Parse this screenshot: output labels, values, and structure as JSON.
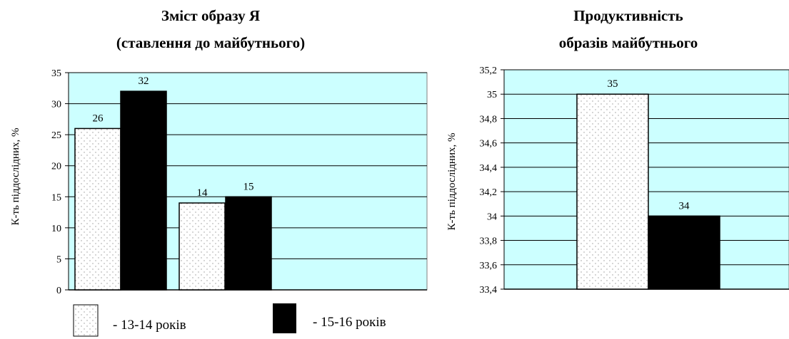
{
  "colors": {
    "plot_background": "#ccffff",
    "series_1_fill": "#ffffff",
    "series_1_dots": "#a0a0a0",
    "series_2_fill": "#000000"
  },
  "legend": {
    "items": [
      {
        "label": "- 13-14 років",
        "pattern": "dotted-white"
      },
      {
        "label": "- 15-16 років",
        "pattern": "solid-black"
      }
    ]
  },
  "chart_data": [
    {
      "type": "bar",
      "title_line1": "Зміст образу Я",
      "title_line2": "(ставлення до майбутнього)",
      "ylabel": "К-ть піддослідних, %",
      "xlabel": "",
      "ylim": [
        0,
        35
      ],
      "yticks": [
        "0",
        "5",
        "10",
        "15",
        "20",
        "25",
        "30",
        "35"
      ],
      "grid": true,
      "categories": [
        "",
        ""
      ],
      "series": [
        {
          "values": [
            26,
            14
          ],
          "labels": [
            "26",
            "14"
          ]
        },
        {
          "values": [
            32,
            15
          ],
          "labels": [
            "32",
            "15"
          ]
        }
      ]
    },
    {
      "type": "bar",
      "title_line1": "Продуктивність",
      "title_line2": "образів майбутнього",
      "ylabel": "К-ть піддослідних, %",
      "xlabel": "",
      "ylim": [
        33.4,
        35.2
      ],
      "yticks": [
        "33,4",
        "33,6",
        "33,8",
        "34",
        "34,2",
        "34,4",
        "34,6",
        "34,8",
        "35",
        "35,2"
      ],
      "grid": true,
      "categories": [
        ""
      ],
      "series": [
        {
          "values": [
            35
          ],
          "labels": [
            "35"
          ]
        },
        {
          "values": [
            34
          ],
          "labels": [
            "34"
          ]
        }
      ]
    }
  ]
}
